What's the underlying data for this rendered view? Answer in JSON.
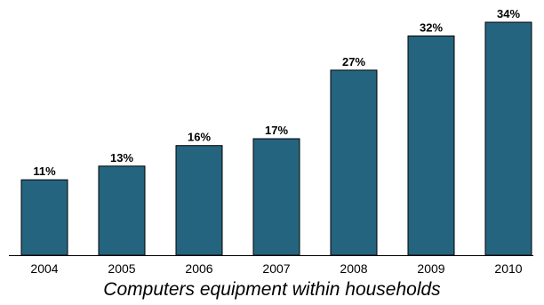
{
  "chart_data": {
    "type": "bar",
    "categories": [
      "2004",
      "2005",
      "2006",
      "2007",
      "2008",
      "2009",
      "2010"
    ],
    "values": [
      11,
      13,
      16,
      17,
      27,
      32,
      34
    ],
    "data_labels": [
      "11%",
      "13%",
      "16%",
      "17%",
      "27%",
      "32%",
      "34%"
    ],
    "title": "",
    "xlabel": "Computers equipment within households",
    "ylabel": "",
    "ylim": [
      0,
      34
    ],
    "grid": false,
    "legend": "none",
    "bar_color": "#25647F",
    "bar_edge_color": "#000000"
  }
}
